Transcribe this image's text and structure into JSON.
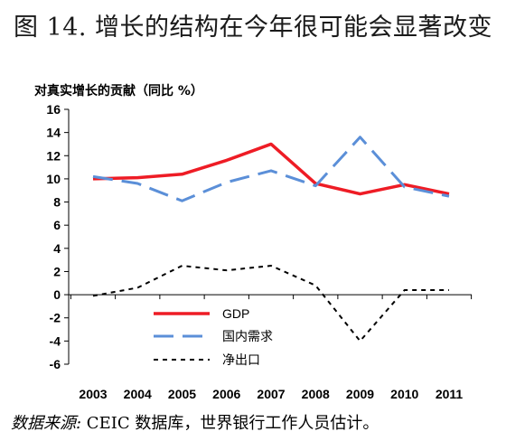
{
  "header": {
    "title": "图 14. 增长的结构在今年很可能会显著改变"
  },
  "source": {
    "label": "数据来源:",
    "text": " CEIC 数据库，世界银行工作人员估计。"
  },
  "chart_data": {
    "type": "line",
    "ylabel": "对真实增长的贡献（同比 %）",
    "xlabel": "",
    "x": [
      "2003",
      "2004",
      "2005",
      "2006",
      "2007",
      "2008",
      "2009",
      "2010",
      "2011"
    ],
    "ylim": [
      -6,
      16
    ],
    "yticks": [
      -6,
      -4,
      -2,
      0,
      2,
      4,
      6,
      8,
      10,
      12,
      14,
      16
    ],
    "grid": false,
    "legend_position": "lower-center",
    "series": [
      {
        "name": "GDP",
        "values": [
          10.0,
          10.1,
          10.4,
          11.6,
          13.0,
          9.6,
          8.7,
          9.5,
          8.7
        ],
        "color": "#ee1c25",
        "style": "solid"
      },
      {
        "name": "国内需求",
        "values": [
          10.2,
          9.6,
          8.1,
          9.7,
          10.7,
          9.4,
          13.6,
          9.3,
          8.5
        ],
        "color": "#5b8fd8",
        "style": "dashed"
      },
      {
        "name": "净出口",
        "values": [
          -0.1,
          0.6,
          2.5,
          2.1,
          2.5,
          0.8,
          -4.0,
          0.4,
          0.4
        ],
        "color": "#000000",
        "style": "dotted"
      }
    ]
  }
}
